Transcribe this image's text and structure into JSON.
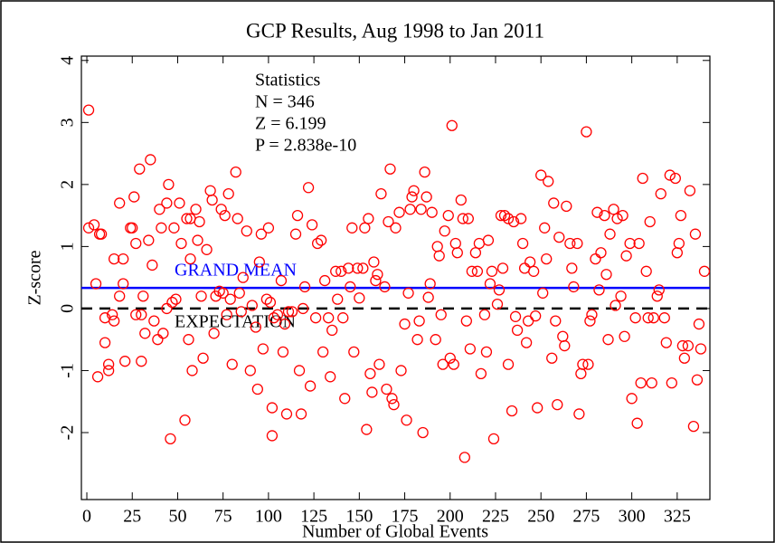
{
  "chart_data": {
    "type": "scatter",
    "title": "GCP Results, Aug 1998 to Jan 2011",
    "x_label": "Number of Global Events",
    "y_label": "Z-score",
    "stats": [
      "Statistics",
      "N = 346",
      "Z = 6.199",
      "P = 2.838e-10"
    ],
    "color": "#ff0000",
    "hlines": [
      {
        "value": 0.333,
        "label": "GRAND MEAN",
        "color": "#0000ff",
        "dashed": false
      },
      {
        "value": 0,
        "label": "EXPECTATION",
        "color": "#000000",
        "dashed": true
      }
    ],
    "xlim": [
      -3,
      343
    ],
    "ylim": [
      -3.08,
      4.07
    ],
    "xticks": [
      0,
      25,
      50,
      75,
      100,
      125,
      150,
      175,
      200,
      225,
      250,
      275,
      300,
      325
    ],
    "yticks": [
      -2,
      -1,
      0,
      1,
      2,
      3,
      4
    ],
    "x": [
      1,
      1,
      4,
      8,
      7,
      5,
      6,
      10,
      10,
      12,
      12,
      14,
      15,
      15,
      18,
      18,
      20,
      20,
      21,
      24,
      25,
      26,
      27,
      27,
      29,
      30,
      30,
      31,
      32,
      34,
      35,
      36,
      37,
      39,
      40,
      41,
      42,
      44,
      44,
      45,
      46,
      47,
      48,
      49,
      51,
      52,
      54,
      55,
      56,
      57,
      57,
      58,
      60,
      61,
      62,
      63,
      64,
      66,
      68,
      69,
      70,
      71,
      73,
      74,
      75,
      76,
      77,
      78,
      79,
      80,
      82,
      83,
      84,
      85,
      86,
      88,
      90,
      91,
      93,
      94,
      95,
      96,
      97,
      99,
      100,
      101,
      102,
      102,
      103,
      105,
      107,
      108,
      109,
      110,
      111,
      113,
      115,
      116,
      117,
      118,
      119,
      120,
      122,
      123,
      124,
      126,
      127,
      129,
      130,
      131,
      133,
      134,
      135,
      137,
      138,
      140,
      141,
      142,
      144,
      145,
      146,
      147,
      149,
      150,
      152,
      153,
      154,
      155,
      156,
      157,
      158,
      159,
      160,
      161,
      162,
      164,
      165,
      166,
      167,
      168,
      169,
      170,
      172,
      173,
      175,
      176,
      177,
      178,
      179,
      180,
      182,
      183,
      184,
      185,
      186,
      187,
      188,
      189,
      190,
      192,
      193,
      194,
      195,
      196,
      197,
      199,
      200,
      201,
      202,
      203,
      204,
      206,
      207,
      208,
      209,
      210,
      211,
      212,
      214,
      215,
      216,
      217,
      219,
      220,
      221,
      222,
      223,
      224,
      226,
      227,
      228,
      229,
      230,
      232,
      232,
      234,
      235,
      236,
      237,
      239,
      240,
      241,
      242,
      243,
      244,
      246,
      247,
      248,
      250,
      251,
      252,
      253,
      254,
      256,
      257,
      258,
      259,
      260,
      262,
      263,
      264,
      266,
      267,
      268,
      270,
      271,
      272,
      273,
      275,
      276,
      277,
      278,
      280,
      281,
      282,
      283,
      285,
      286,
      287,
      288,
      290,
      291,
      292,
      294,
      295,
      296,
      297,
      299,
      300,
      302,
      303,
      304,
      305,
      306,
      308,
      309,
      310,
      311,
      312,
      314,
      315,
      316,
      318,
      319,
      321,
      322,
      324,
      325,
      326,
      327,
      328,
      329,
      331,
      332,
      334,
      335,
      336,
      337,
      338,
      340
    ],
    "values": [
      3.2,
      1.3,
      1.35,
      1.2,
      1.2,
      0.4,
      -1.1,
      -0.15,
      -0.55,
      -1.0,
      -0.9,
      -0.1,
      -0.2,
      0.8,
      0.2,
      1.7,
      0.8,
      0.4,
      -0.85,
      1.3,
      1.3,
      1.8,
      -0.1,
      1.05,
      2.25,
      -0.1,
      -0.85,
      0.2,
      -0.4,
      1.1,
      2.4,
      0.7,
      -0.2,
      -0.5,
      1.6,
      1.3,
      -0.4,
      1.7,
      0,
      2.0,
      -2.1,
      0.1,
      1.3,
      0.15,
      1.7,
      1.05,
      -1.8,
      1.45,
      -0.5,
      1.45,
      0.8,
      -1.0,
      1.6,
      1.1,
      1.4,
      0.2,
      -0.8,
      0.95,
      1.9,
      1.75,
      -0.4,
      0.2,
      0.28,
      1.6,
      0.25,
      1.5,
      -0.1,
      1.85,
      0.15,
      -0.9,
      2.2,
      1.45,
      0.25,
      -0.05,
      0.5,
      1.25,
      -1.0,
      0.05,
      -0.3,
      -1.3,
      0.75,
      1.2,
      -0.65,
      0.15,
      1.3,
      0.1,
      -1.6,
      -2.05,
      -0.15,
      -0.1,
      0.45,
      -0.7,
      -0.25,
      -1.7,
      -0.05,
      -0.05,
      1.2,
      1.5,
      -1.0,
      -1.7,
      0,
      0.35,
      1.95,
      -1.25,
      1.35,
      -0.15,
      1.05,
      1.1,
      -0.7,
      0.45,
      -0.15,
      -1.1,
      -0.35,
      0.6,
      0.15,
      0.6,
      -0.15,
      -1.45,
      0.65,
      0.35,
      1.3,
      -0.7,
      0.65,
      0.17,
      0.65,
      1.3,
      -1.95,
      1.45,
      -1.05,
      -1.35,
      0.75,
      0.45,
      0.55,
      -0.9,
      1.85,
      0.35,
      -1.3,
      1.4,
      2.25,
      -1.45,
      -1.55,
      1.3,
      1.55,
      -1.0,
      -0.25,
      -1.8,
      0.25,
      1.6,
      1.8,
      1.9,
      -0.5,
      -0.2,
      1.6,
      -2.0,
      2.2,
      1.8,
      0.18,
      0.4,
      1.55,
      -0.5,
      1.0,
      0.85,
      -0.1,
      -0.9,
      1.25,
      1.5,
      -0.8,
      2.95,
      -0.9,
      1.05,
      0.9,
      1.75,
      1.45,
      -2.4,
      -0.2,
      1.45,
      -0.65,
      0.6,
      0.9,
      0.6,
      1.05,
      -1.05,
      -0.1,
      -0.7,
      1.1,
      0.4,
      0.6,
      -2.1,
      0.07,
      0.3,
      1.5,
      0.65,
      1.5,
      -0.9,
      1.45,
      -1.65,
      1.4,
      -0.13,
      -0.35,
      1.45,
      1.05,
      0.65,
      -0.55,
      -0.2,
      0.75,
      0.6,
      -0.12,
      -1.6,
      2.15,
      0.25,
      1.3,
      0.8,
      2.05,
      -0.8,
      1.7,
      -0.2,
      -1.55,
      1.15,
      -0.45,
      -0.6,
      1.65,
      1.05,
      0.65,
      0.35,
      1.05,
      -1.7,
      -1.05,
      -0.9,
      2.85,
      -0.9,
      -0.2,
      -0.1,
      0.8,
      1.55,
      0.3,
      0.9,
      1.5,
      0.55,
      -0.5,
      1.2,
      1.6,
      0.05,
      1.45,
      0.2,
      1.5,
      -0.45,
      0.85,
      1.05,
      -1.45,
      -0.15,
      -1.85,
      1.05,
      -1.2,
      2.1,
      0.6,
      -0.15,
      1.4,
      -1.2,
      -0.15,
      0.2,
      0.3,
      1.85,
      -0.15,
      -0.55,
      2.15,
      -1.2,
      2.1,
      0.9,
      1.05,
      1.5,
      -0.6,
      -0.8,
      -0.6,
      1.9,
      -1.9,
      1.2,
      -1.15,
      -0.25,
      -0.65,
      0.6
    ]
  }
}
